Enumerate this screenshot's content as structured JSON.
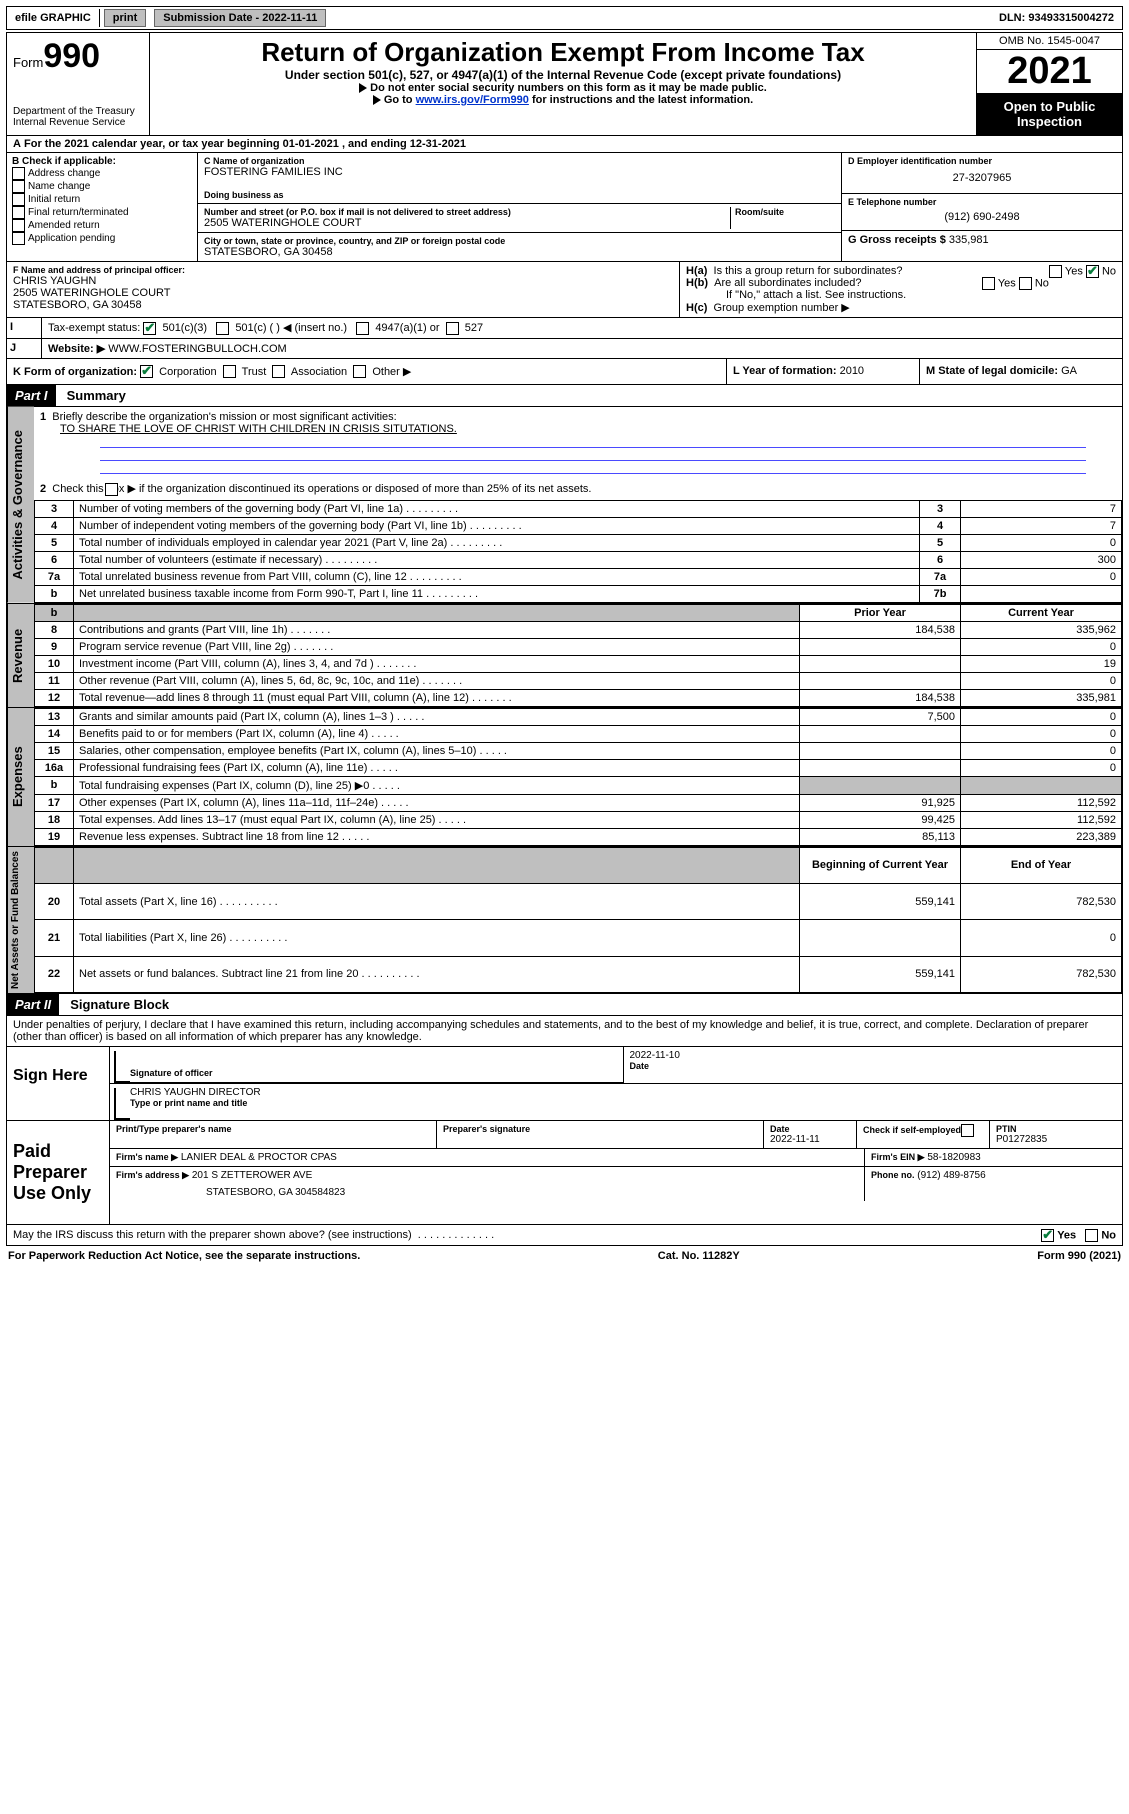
{
  "topbar": {
    "efile": "efile GRAPHIC",
    "print": "print",
    "subdate_label": "Submission Date - 2022-11-11",
    "dln": "DLN: 93493315004272"
  },
  "header": {
    "form_word": "Form",
    "form_num": "990",
    "dept": "Department of the Treasury",
    "irs": "Internal Revenue Service",
    "title": "Return of Organization Exempt From Income Tax",
    "sub1": "Under section 501(c), 527, or 4947(a)(1) of the Internal Revenue Code (except private foundations)",
    "sub2": "Do not enter social security numbers on this form as it may be made public.",
    "sub3_pre": "Go to ",
    "sub3_link": "www.irs.gov/Form990",
    "sub3_post": " for instructions and the latest information.",
    "omb": "OMB No. 1545-0047",
    "year": "2021",
    "inspect": "Open to Public Inspection"
  },
  "boxA": {
    "text": "For the 2021 calendar year, or tax year beginning 01-01-2021   , and ending 12-31-2021"
  },
  "boxB": {
    "label": "B Check if applicable:",
    "items": [
      "Address change",
      "Name change",
      "Initial return",
      "Final return/terminated",
      "Amended return",
      "Application pending"
    ]
  },
  "boxC": {
    "name_label": "C Name of organization",
    "name": "FOSTERING FAMILIES INC",
    "dba_label": "Doing business as",
    "street_label": "Number and street (or P.O. box if mail is not delivered to street address)",
    "room_label": "Room/suite",
    "street": "2505 WATERINGHOLE COURT",
    "city_label": "City or town, state or province, country, and ZIP or foreign postal code",
    "city": "STATESBORO, GA  30458"
  },
  "boxD": {
    "label": "D Employer identification number",
    "value": "27-3207965"
  },
  "boxE": {
    "label": "E Telephone number",
    "value": "(912) 690-2498"
  },
  "boxG": {
    "label": "G Gross receipts $",
    "value": "335,981"
  },
  "boxF": {
    "label": "F Name and address of principal officer:",
    "name": "CHRIS YAUGHN",
    "addr1": "2505 WATERINGHOLE COURT",
    "addr2": "STATESBORO, GA  30458"
  },
  "boxH": {
    "a": "Is this a group return for subordinates?",
    "b": "Are all subordinates included?",
    "b_note": "If \"No,\" attach a list. See instructions.",
    "c": "Group exemption number ▶",
    "yes": "Yes",
    "no": "No"
  },
  "boxI": {
    "label": "Tax-exempt status:",
    "o1": "501(c)(3)",
    "o2": "501(c) (   ) ◀ (insert no.)",
    "o3": "4947(a)(1) or",
    "o4": "527"
  },
  "boxJ": {
    "label": "Website: ▶",
    "value": "WWW.FOSTERINGBULLOCH.COM"
  },
  "boxK": {
    "label": "K Form of organization:",
    "o1": "Corporation",
    "o2": "Trust",
    "o3": "Association",
    "o4": "Other ▶"
  },
  "boxL": {
    "label": "L Year of formation:",
    "value": "2010"
  },
  "boxM": {
    "label": "M State of legal domicile:",
    "value": "GA"
  },
  "partI": {
    "title": "Part I",
    "sub": "Summary"
  },
  "summary": {
    "line1_label": "Briefly describe the organization's mission or most significant activities:",
    "line1_text": "TO SHARE THE LOVE OF CHRIST WITH CHILDREN IN CRISIS SITUTATIONS.",
    "line2": "Check this box ▶        if the organization discontinued its operations or disposed of more than 25% of its net assets.",
    "vlabel_gov": "Activities & Governance",
    "vlabel_rev": "Revenue",
    "vlabel_exp": "Expenses",
    "vlabel_net": "Net Assets or Fund Balances",
    "prior": "Prior Year",
    "current": "Current Year",
    "begin": "Beginning of Current Year",
    "end": "End of Year",
    "rows_gov": [
      {
        "n": "3",
        "d": "Number of voting members of the governing body (Part VI, line 1a)",
        "b": "3",
        "v": "7"
      },
      {
        "n": "4",
        "d": "Number of independent voting members of the governing body (Part VI, line 1b)",
        "b": "4",
        "v": "7"
      },
      {
        "n": "5",
        "d": "Total number of individuals employed in calendar year 2021 (Part V, line 2a)",
        "b": "5",
        "v": "0"
      },
      {
        "n": "6",
        "d": "Total number of volunteers (estimate if necessary)",
        "b": "6",
        "v": "300"
      },
      {
        "n": "7a",
        "d": "Total unrelated business revenue from Part VIII, column (C), line 12",
        "b": "7a",
        "v": "0"
      },
      {
        "n": "b",
        "d": "Net unrelated business taxable income from Form 990-T, Part I, line 11",
        "b": "7b",
        "v": ""
      }
    ],
    "rows_rev": [
      {
        "n": "8",
        "d": "Contributions and grants (Part VIII, line 1h)",
        "p": "184,538",
        "c": "335,962"
      },
      {
        "n": "9",
        "d": "Program service revenue (Part VIII, line 2g)",
        "p": "",
        "c": "0"
      },
      {
        "n": "10",
        "d": "Investment income (Part VIII, column (A), lines 3, 4, and 7d )",
        "p": "",
        "c": "19"
      },
      {
        "n": "11",
        "d": "Other revenue (Part VIII, column (A), lines 5, 6d, 8c, 9c, 10c, and 11e)",
        "p": "",
        "c": "0"
      },
      {
        "n": "12",
        "d": "Total revenue—add lines 8 through 11 (must equal Part VIII, column (A), line 12)",
        "p": "184,538",
        "c": "335,981"
      }
    ],
    "rows_exp": [
      {
        "n": "13",
        "d": "Grants and similar amounts paid (Part IX, column (A), lines 1–3 )",
        "p": "7,500",
        "c": "0"
      },
      {
        "n": "14",
        "d": "Benefits paid to or for members (Part IX, column (A), line 4)",
        "p": "",
        "c": "0"
      },
      {
        "n": "15",
        "d": "Salaries, other compensation, employee benefits (Part IX, column (A), lines 5–10)",
        "p": "",
        "c": "0"
      },
      {
        "n": "16a",
        "d": "Professional fundraising fees (Part IX, column (A), line 11e)",
        "p": "",
        "c": "0"
      },
      {
        "n": "b",
        "d": "Total fundraising expenses (Part IX, column (D), line 25) ▶0",
        "p": "SHADE",
        "c": "SHADE"
      },
      {
        "n": "17",
        "d": "Other expenses (Part IX, column (A), lines 11a–11d, 11f–24e)",
        "p": "91,925",
        "c": "112,592"
      },
      {
        "n": "18",
        "d": "Total expenses. Add lines 13–17 (must equal Part IX, column (A), line 25)",
        "p": "99,425",
        "c": "112,592"
      },
      {
        "n": "19",
        "d": "Revenue less expenses. Subtract line 18 from line 12",
        "p": "85,113",
        "c": "223,389"
      }
    ],
    "rows_net": [
      {
        "n": "20",
        "d": "Total assets (Part X, line 16)",
        "p": "559,141",
        "c": "782,530"
      },
      {
        "n": "21",
        "d": "Total liabilities (Part X, line 26)",
        "p": "",
        "c": "0"
      },
      {
        "n": "22",
        "d": "Net assets or fund balances. Subtract line 21 from line 20",
        "p": "559,141",
        "c": "782,530"
      }
    ]
  },
  "partII": {
    "title": "Part II",
    "sub": "Signature Block"
  },
  "penalty": "Under penalties of perjury, I declare that I have examined this return, including accompanying schedules and statements, and to the best of my knowledge and belief, it is true, correct, and complete. Declaration of preparer (other than officer) is based on all information of which preparer has any knowledge.",
  "sign": {
    "here": "Sign Here",
    "sig_officer": "Signature of officer",
    "date_label": "Date",
    "date": "2022-11-10",
    "name": "CHRIS YAUGHN  DIRECTOR",
    "name_label": "Type or print name and title"
  },
  "preparer": {
    "title": "Paid Preparer Use Only",
    "name_label": "Print/Type preparer's name",
    "sig_label": "Preparer's signature",
    "date_label": "Date",
    "date": "2022-11-11",
    "check_label": "Check         if self-employed",
    "ptin_label": "PTIN",
    "ptin": "P01272835",
    "firm_name_label": "Firm's name      ▶",
    "firm_name": "LANIER DEAL & PROCTOR CPAS",
    "firm_ein_label": "Firm's EIN ▶",
    "firm_ein": "58-1820983",
    "firm_addr_label": "Firm's address ▶",
    "firm_addr": "201 S ZETTEROWER AVE",
    "firm_addr2": "STATESBORO, GA  304584823",
    "phone_label": "Phone no.",
    "phone": "(912) 489-8756"
  },
  "discuss": {
    "text": "May the IRS discuss this return with the preparer shown above? (see instructions)",
    "yes": "Yes",
    "no": "No"
  },
  "footer": {
    "left": "For Paperwork Reduction Act Notice, see the separate instructions.",
    "mid": "Cat. No. 11282Y",
    "right": "Form 990 (2021)"
  }
}
